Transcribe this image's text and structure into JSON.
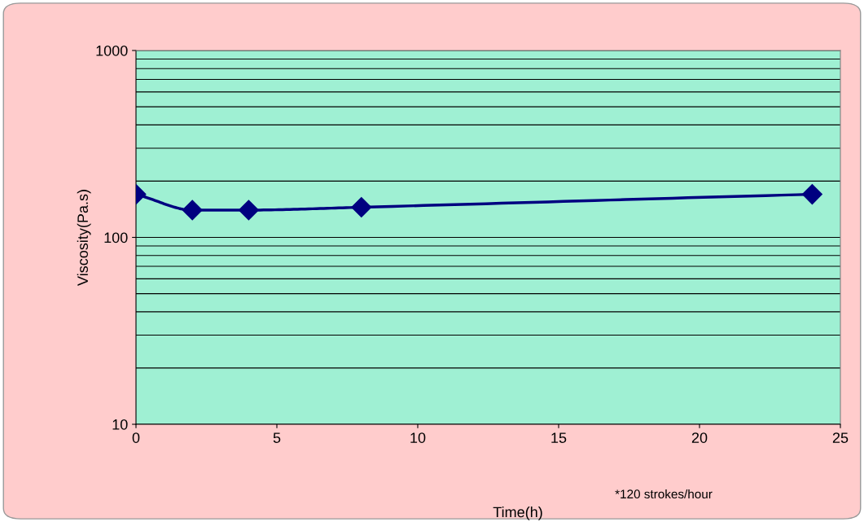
{
  "chart_data": {
    "type": "line",
    "xlabel": "Time(h)",
    "ylabel": "Viscosity(Pa.s)",
    "x": [
      0,
      2,
      4,
      8,
      24
    ],
    "series": [
      {
        "color": "#000080",
        "values": [
          170,
          140,
          140,
          145,
          170
        ]
      }
    ],
    "xlim": [
      0,
      25
    ],
    "xticks": [
      0,
      5,
      10,
      15,
      20,
      25
    ],
    "ylim": [
      10,
      1000
    ],
    "yticks": [
      10,
      100,
      1000
    ],
    "log": true,
    "grid": "y",
    "marker": "diamond",
    "line_style": "solid",
    "annotations": [
      "*120 strokes/hour"
    ]
  }
}
